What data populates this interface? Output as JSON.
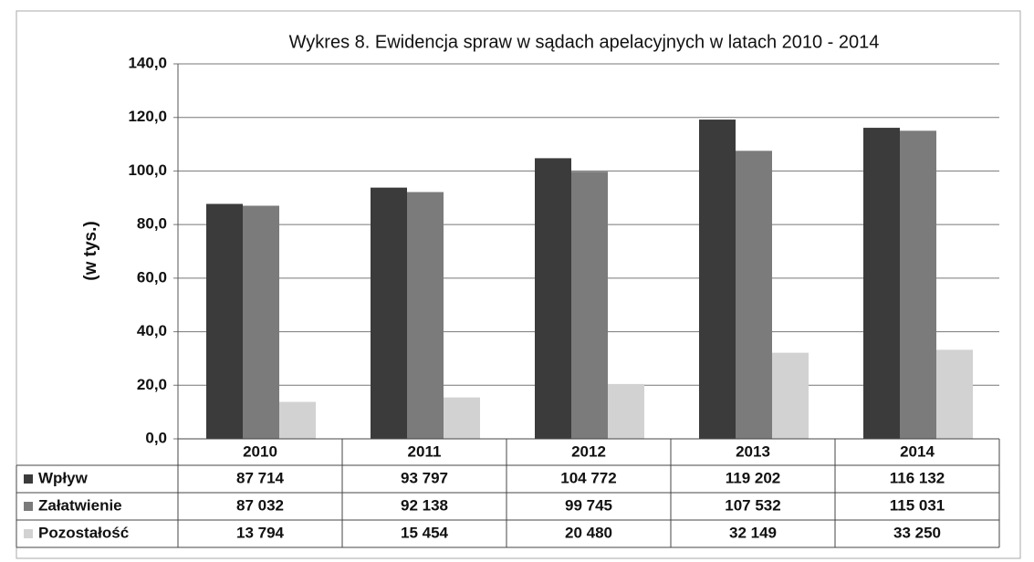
{
  "chart_data": {
    "type": "bar",
    "title": "Wykres 8. Ewidencja spraw w sądach apelacyjnych w latach 2010 - 2014",
    "y_label": "(w tys.)",
    "categories": [
      "2010",
      "2011",
      "2012",
      "2013",
      "2014"
    ],
    "series": [
      {
        "name": "Wpływ",
        "color": "#3b3b3b",
        "values": [
          87.714,
          93.797,
          104.772,
          119.202,
          116.132
        ],
        "value_labels": [
          "87 714",
          "93 797",
          "104 772",
          "119 202",
          "116 132"
        ]
      },
      {
        "name": "Załatwienie",
        "color": "#7b7b7b",
        "values": [
          87.032,
          92.138,
          99.745,
          107.532,
          115.031
        ],
        "value_labels": [
          "87 032",
          "92 138",
          "99 745",
          "107 532",
          "115 031"
        ]
      },
      {
        "name": "Pozostałość",
        "color": "#d2d2d2",
        "values": [
          13.794,
          15.454,
          20.48,
          32.149,
          33.25
        ],
        "value_labels": [
          "13 794",
          "15 454",
          "20 480",
          "32 149",
          "33 250"
        ]
      }
    ],
    "ylim": [
      0,
      140
    ],
    "yticks": [
      {
        "value": 0,
        "label": "0,0"
      },
      {
        "value": 20,
        "label": "20,0"
      },
      {
        "value": 40,
        "label": "40,0"
      },
      {
        "value": 60,
        "label": "60,0"
      },
      {
        "value": 80,
        "label": "80,0"
      },
      {
        "value": 100,
        "label": "100,0"
      },
      {
        "value": 120,
        "label": "120,0"
      },
      {
        "value": 140,
        "label": "140,0"
      }
    ],
    "grid": true
  }
}
